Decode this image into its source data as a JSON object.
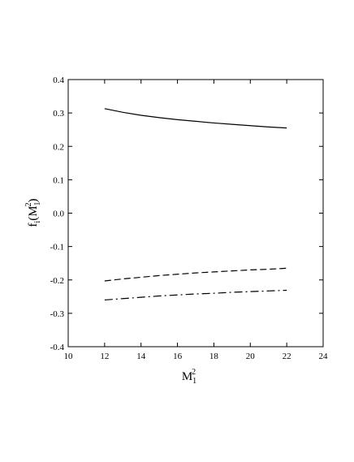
{
  "chart_data": {
    "type": "line",
    "x": [
      12,
      13,
      14,
      15,
      16,
      17,
      18,
      19,
      20,
      21,
      22
    ],
    "series": [
      {
        "color": "#000000",
        "dash": "solid",
        "values": [
          0.313,
          0.302,
          0.293,
          0.286,
          0.28,
          0.275,
          0.27,
          0.266,
          0.262,
          0.258,
          0.255
        ]
      },
      {
        "color": "#000000",
        "dash": "dashed",
        "values": [
          -0.203,
          -0.197,
          -0.192,
          -0.187,
          -0.183,
          -0.179,
          -0.176,
          -0.173,
          -0.17,
          -0.168,
          -0.165
        ]
      },
      {
        "color": "#000000",
        "dash": "dashdot",
        "values": [
          -0.26,
          -0.256,
          -0.252,
          -0.248,
          -0.245,
          -0.242,
          -0.24,
          -0.237,
          -0.235,
          -0.233,
          -0.231
        ]
      }
    ],
    "xlim": [
      10,
      24
    ],
    "xticks": [
      10,
      12,
      14,
      16,
      18,
      20,
      22,
      24
    ],
    "ylim": [
      -0.4,
      0.4
    ],
    "yticks": [
      -0.4,
      -0.3,
      -0.2,
      -0.1,
      {
        "value": 0,
        "label": "0.0"
      },
      0.1,
      0.2,
      0.3,
      0.4
    ],
    "xlabel": {
      "text": "M",
      "sub": "1",
      "sup": "2"
    },
    "ylabel": {
      "text": "f",
      "sub": "i",
      "open": "(",
      "inner": {
        "text": "M",
        "sub": "1",
        "sup": "2"
      },
      "close": ")"
    },
    "grid": false
  }
}
